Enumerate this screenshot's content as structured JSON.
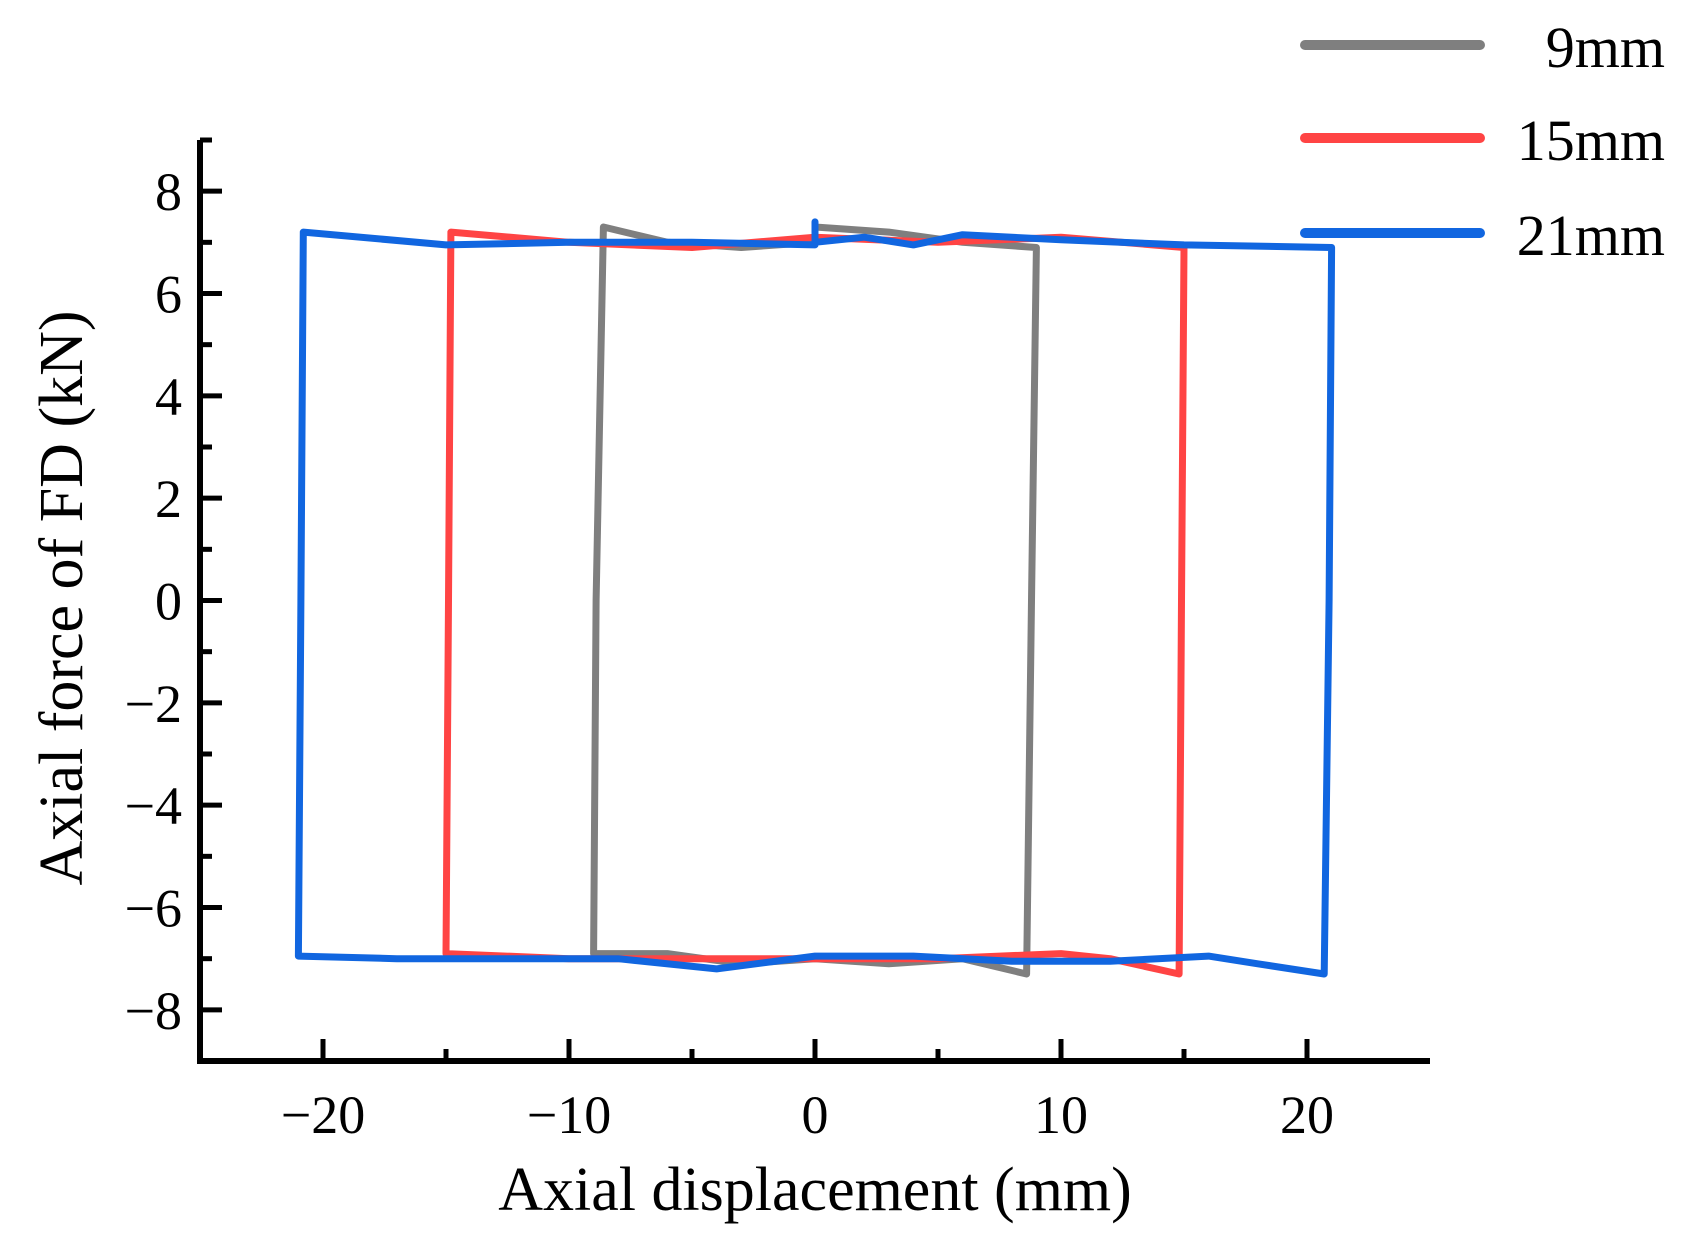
{
  "chart_data": {
    "type": "line",
    "title": "",
    "xlabel": "Axial displacement (mm)",
    "ylabel": "Axial force of FD (kN)",
    "xlim": [
      -25,
      25
    ],
    "ylim": [
      -9,
      9
    ],
    "xticks": [
      -20,
      -10,
      0,
      10,
      20
    ],
    "yticks": [
      8,
      6,
      4,
      2,
      0,
      -2,
      -4,
      -6,
      -8
    ],
    "xtick_labels": [
      "−20",
      "−10",
      "0",
      "10",
      "20"
    ],
    "ytick_labels": [
      "8",
      "6",
      "4",
      "2",
      "0",
      "−2",
      "−4",
      "−6",
      "−8"
    ],
    "grid": false,
    "legend_position": "top-right outside",
    "series": [
      {
        "name": "9mm",
        "color": "#7f7f7f",
        "points": [
          [
            0,
            7.3
          ],
          [
            3,
            7.2
          ],
          [
            6,
            7.0
          ],
          [
            9,
            6.9
          ],
          [
            8.8,
            0
          ],
          [
            8.6,
            -7.3
          ],
          [
            6,
            -7.0
          ],
          [
            3,
            -7.1
          ],
          [
            0,
            -7.0
          ],
          [
            -3,
            -7.1
          ],
          [
            -6,
            -6.9
          ],
          [
            -9,
            -6.9
          ],
          [
            -8.9,
            0
          ],
          [
            -8.6,
            7.3
          ],
          [
            -6,
            7.0
          ],
          [
            -3,
            6.9
          ],
          [
            0,
            7.0
          ]
        ]
      },
      {
        "name": "15mm",
        "color": "#ff4444",
        "points": [
          [
            0,
            7.1
          ],
          [
            5,
            7.0
          ],
          [
            10,
            7.1
          ],
          [
            15,
            6.9
          ],
          [
            14.9,
            0
          ],
          [
            14.8,
            -7.3
          ],
          [
            12,
            -7.0
          ],
          [
            10,
            -6.9
          ],
          [
            5,
            -7.0
          ],
          [
            0,
            -7.0
          ],
          [
            -5,
            -7.0
          ],
          [
            -10,
            -7.0
          ],
          [
            -15,
            -6.9
          ],
          [
            -14.9,
            0
          ],
          [
            -14.8,
            7.2
          ],
          [
            -10,
            7.0
          ],
          [
            -5,
            6.9
          ],
          [
            0,
            7.1
          ]
        ]
      },
      {
        "name": "21mm",
        "color": "#1166e0",
        "points": [
          [
            0,
            7.0
          ],
          [
            2,
            7.1
          ],
          [
            4,
            6.95
          ],
          [
            6,
            7.15
          ],
          [
            10,
            7.05
          ],
          [
            15,
            6.95
          ],
          [
            21,
            6.9
          ],
          [
            20.9,
            0
          ],
          [
            20.7,
            -7.3
          ],
          [
            18,
            -7.1
          ],
          [
            16,
            -6.95
          ],
          [
            12,
            -7.05
          ],
          [
            8,
            -7.05
          ],
          [
            4,
            -6.95
          ],
          [
            0,
            -6.95
          ],
          [
            -4,
            -7.2
          ],
          [
            -8,
            -7.0
          ],
          [
            -12,
            -7.0
          ],
          [
            -17,
            -7.0
          ],
          [
            -21,
            -6.95
          ],
          [
            -20.9,
            0
          ],
          [
            -20.8,
            7.2
          ],
          [
            -15,
            6.95
          ],
          [
            -10,
            7.0
          ],
          [
            -5,
            7.0
          ],
          [
            0,
            6.95
          ],
          [
            0,
            7.4
          ],
          [
            0,
            7.0
          ]
        ]
      }
    ]
  }
}
